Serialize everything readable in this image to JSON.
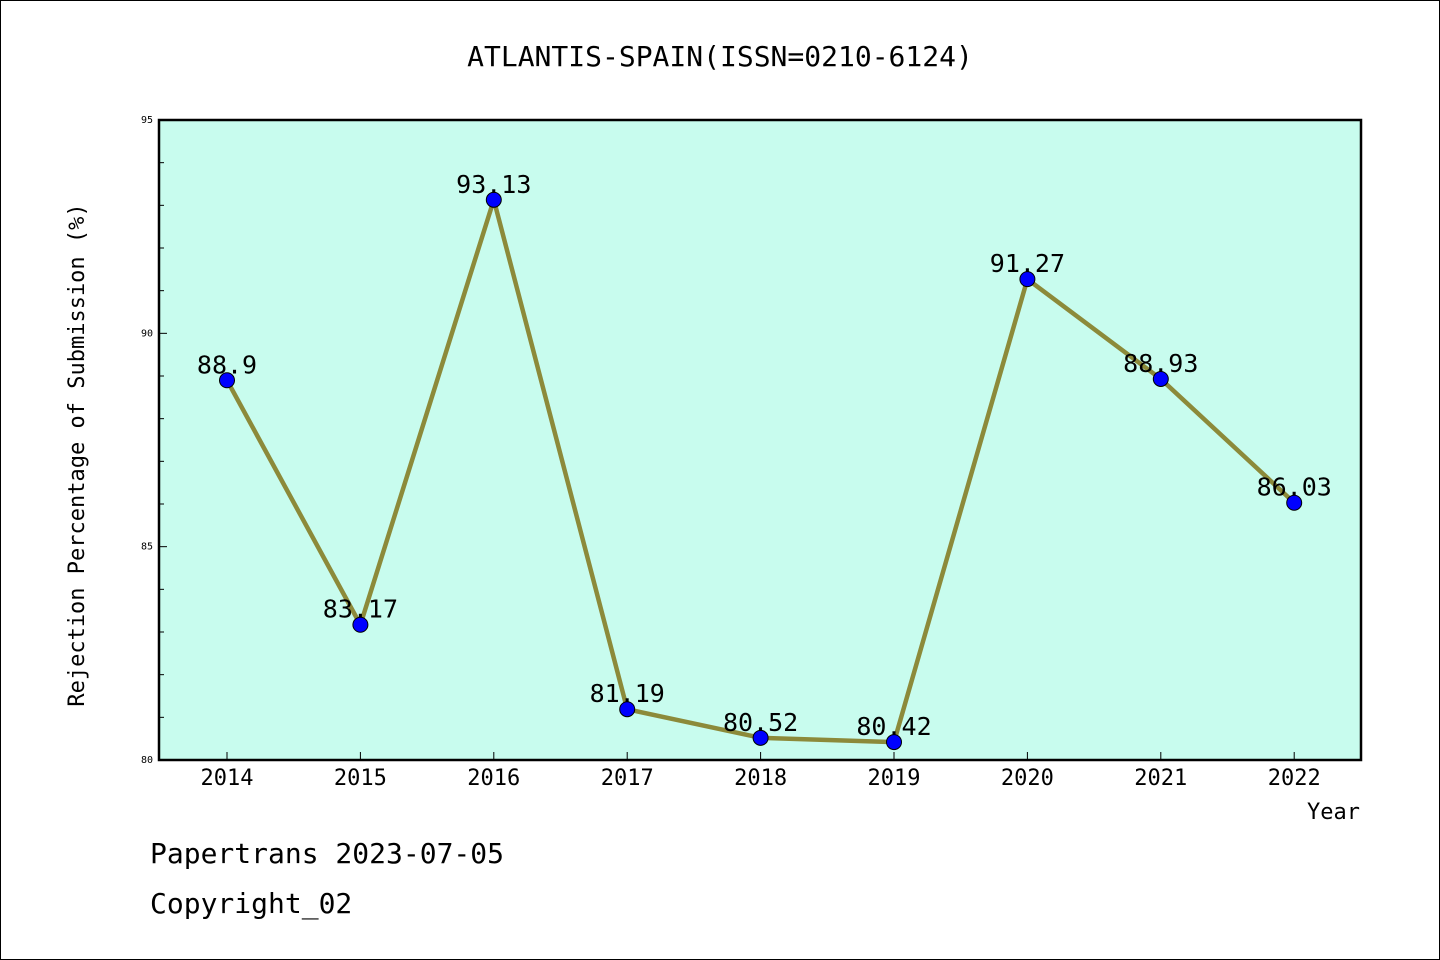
{
  "chart_data": {
    "type": "line",
    "title": "ATLANTIS-SPAIN(ISSN=0210-6124)",
    "xlabel": "Year",
    "ylabel": "Rejection Percentage of Submission (%)",
    "categories": [
      "2014",
      "2015",
      "2016",
      "2017",
      "2018",
      "2019",
      "2020",
      "2021",
      "2022"
    ],
    "series": [
      {
        "values": [
          88.9,
          83.17,
          93.13,
          81.19,
          80.52,
          80.42,
          91.27,
          88.93,
          86.03
        ],
        "labels": [
          "88.9",
          "83.17",
          "93.13",
          "81.19",
          "80.52",
          "80.42",
          "91.27",
          "88.93",
          "86.03"
        ],
        "line_color": "#8c8a3a",
        "marker_color": "#0000ff"
      }
    ],
    "ylim": [
      80,
      95
    ],
    "yticks": [
      "80",
      "85",
      "90",
      "95"
    ],
    "plot_background": "#c8fcee",
    "grid": false
  },
  "footer": {
    "line1": "Papertrans 2023-07-05",
    "line2": "Copyright_02"
  }
}
